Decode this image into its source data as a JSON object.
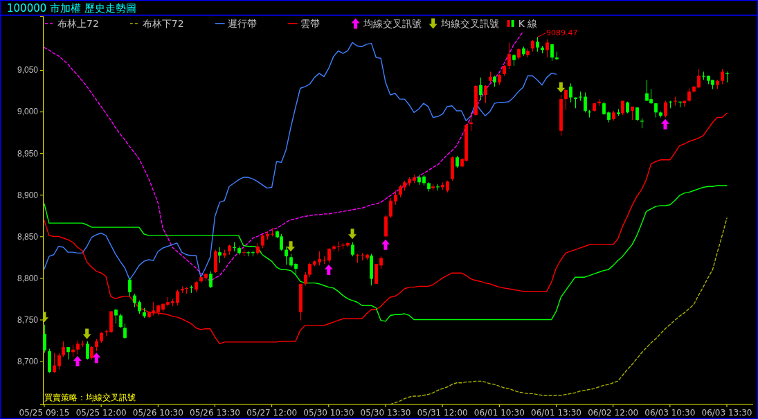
{
  "chart_data": {
    "type": "candlestick",
    "title": "100000 市加權  歷史走勢圖",
    "categories": [
      "05/25 09:15",
      null,
      null,
      null,
      null,
      null,
      null,
      null,
      null,
      null,
      null,
      null,
      "05/25 12:00",
      null,
      null,
      null,
      null,
      null,
      null,
      null,
      null,
      null,
      null,
      null,
      "05/26 10:30",
      null,
      null,
      null,
      null,
      null,
      null,
      null,
      null,
      null,
      null,
      null,
      "05/26 13:30",
      null,
      null,
      null,
      null,
      null,
      null,
      null,
      null,
      null,
      null,
      null,
      "05/27 12:00",
      null,
      null,
      null,
      null,
      null,
      null,
      null,
      null,
      null,
      null,
      null,
      "05/30 10:30",
      null,
      null,
      null,
      null,
      null,
      null,
      null,
      null,
      null,
      null,
      null,
      "05/30 13:30",
      null,
      null,
      null,
      null,
      null,
      null,
      null,
      null,
      null,
      null,
      null,
      "05/31 12:00",
      null,
      null,
      null,
      null,
      null,
      null,
      null,
      null,
      null,
      null,
      null,
      "06/01 10:30",
      null,
      null,
      null,
      null,
      null,
      null,
      null,
      null,
      null,
      null,
      null,
      "06/01 13:30",
      null,
      null,
      null,
      null,
      null,
      null,
      null,
      null,
      null,
      null,
      null,
      "06/02 12:00",
      null,
      null,
      null,
      null,
      null,
      null,
      null,
      null,
      null,
      null,
      null,
      "06/03 10:30",
      null,
      null,
      null,
      null,
      null,
      null,
      null,
      null,
      null,
      null,
      null,
      "06/03 13:30"
    ],
    "ylim": [
      8648,
      9115
    ],
    "yticks": [
      {
        "value": 8700,
        "label": "8,700"
      },
      {
        "value": 8750,
        "label": "8,750"
      },
      {
        "value": 8800,
        "label": "8,800"
      },
      {
        "value": 8850,
        "label": "8,850"
      },
      {
        "value": 8900,
        "label": "8,900"
      },
      {
        "value": 8950,
        "label": "8,950"
      },
      {
        "value": 9000,
        "label": "9,000"
      },
      {
        "value": 9050,
        "label": "9,050"
      }
    ],
    "legend": "top",
    "annotations": [
      "買賣策略：均線交叉訊號",
      "9089.47"
    ],
    "series": [
      {
        "name": "布林上72",
        "type": "line",
        "color": "#ff00ff",
        "line_style": "dashed",
        "values": [
          9077,
          9074,
          9070,
          9067,
          9062,
          9057,
          9050,
          9044,
          9037,
          9030,
          9022,
          9014,
          9006,
          8998,
          8990,
          8981,
          8973,
          8966,
          8958,
          8951,
          8943,
          8932,
          8920,
          8905,
          8890,
          8860,
          8849,
          8837,
          8832,
          8827,
          8822,
          8817,
          8812,
          8806,
          8801,
          8796,
          8800,
          8803,
          8810,
          8818,
          8825,
          8831,
          8837,
          8842,
          8848,
          8850,
          8853,
          8855,
          8858,
          8860,
          8863,
          8867,
          8870,
          8871,
          8873,
          8874,
          8875,
          8876,
          8876,
          8877,
          8877,
          8878,
          8879,
          8880,
          8881,
          8882,
          8883,
          8884,
          8886,
          8888,
          8889,
          8891,
          8895,
          8899,
          8903,
          8907,
          8911,
          8915,
          8919,
          8922,
          8926,
          8929,
          8933,
          8936,
          8942,
          8948,
          8953,
          8959,
          8970,
          8982,
          8993,
          9004,
          9015,
          9026,
          9033,
          9040,
          9047,
          9058,
          9069,
          9080,
          9088,
          9096,
          null,
          null,
          null,
          null,
          null,
          null,
          null,
          null,
          null,
          null,
          null,
          null,
          null,
          null,
          null,
          null,
          null,
          null,
          null,
          null,
          null,
          null,
          null,
          null,
          null,
          null,
          null,
          null,
          null,
          null,
          null,
          null,
          null,
          null,
          null,
          null,
          null,
          null,
          null,
          null,
          null,
          null,
          null
        ]
      },
      {
        "name": "布林下72",
        "type": "line",
        "color": "#a8b000",
        "line_style": "dashed",
        "values": [
          null,
          null,
          null,
          null,
          null,
          null,
          null,
          null,
          null,
          null,
          null,
          null,
          null,
          null,
          null,
          null,
          null,
          null,
          null,
          null,
          null,
          null,
          null,
          null,
          null,
          null,
          null,
          null,
          null,
          null,
          null,
          null,
          null,
          null,
          null,
          null,
          null,
          null,
          null,
          null,
          null,
          null,
          null,
          null,
          null,
          null,
          null,
          null,
          null,
          null,
          null,
          null,
          null,
          null,
          null,
          null,
          null,
          null,
          null,
          null,
          null,
          null,
          null,
          null,
          null,
          null,
          null,
          null,
          null,
          null,
          null,
          null,
          null,
          8648,
          8650,
          8652,
          8655,
          8657,
          8658,
          8658,
          8659,
          8660,
          8662,
          8665,
          8667,
          8669,
          8672,
          8674,
          8674,
          8675,
          8675,
          8676,
          8676,
          8675,
          8673,
          8672,
          8670,
          8668,
          8667,
          8665,
          8663,
          8662,
          8661,
          8661,
          8660,
          8659,
          8659,
          8659,
          8659,
          8659,
          8660,
          8661,
          8662,
          8664,
          8665,
          8666,
          8667,
          8669,
          8671,
          8672,
          8674,
          8676,
          8683,
          8690,
          8696,
          8703,
          8710,
          8716,
          8722,
          8727,
          8733,
          8739,
          8744,
          8749,
          8754,
          8758,
          8763,
          8768,
          8779,
          8789,
          8800,
          8810,
          8831,
          8851,
          8872
        ]
      },
      {
        "name": "遲行帶",
        "type": "line",
        "color": "#4080ff",
        "line_style": "solid",
        "values": [
          8811,
          8826,
          8828,
          8838,
          8837,
          8831,
          8831,
          8830,
          8830,
          8838,
          8849,
          8852,
          8854,
          8851,
          8840,
          8829,
          8820,
          8812,
          8798,
          8806,
          8815,
          8820,
          8822,
          8821,
          8832,
          8836,
          8838,
          8840,
          8842,
          8831,
          8828,
          8827,
          8827,
          8801,
          8812,
          8825,
          8874,
          8891,
          8893,
          8910,
          8914,
          8918,
          8921,
          8921,
          8919,
          8916,
          8912,
          8908,
          8909,
          8940,
          8939,
          8954,
          8981,
          9005,
          9028,
          9030,
          9033,
          9041,
          9046,
          9042,
          9052,
          9066,
          9073,
          9070,
          9073,
          9083,
          9079,
          9078,
          9081,
          9082,
          9065,
          9064,
          9035,
          9020,
          9022,
          9015,
          9015,
          9008,
          8999,
          9003,
          9010,
          9006,
          8993,
          8994,
          8997,
          9006,
          9007,
          9001,
          9001,
          8989,
          8995,
          9010,
          9002,
          8995,
          9000,
          9010,
          9011,
          9011,
          9012,
          9017,
          9024,
          9029,
          9043,
          9043,
          9038,
          9032,
          9041,
          9046,
          9045,
          null,
          null,
          null,
          null,
          null,
          null,
          null,
          null,
          null,
          null,
          null,
          null,
          null,
          null,
          null,
          null,
          null,
          null,
          null,
          null,
          null,
          null,
          null,
          null,
          null,
          null,
          null,
          null,
          null,
          null,
          null,
          null,
          null,
          null,
          null,
          null
        ]
      },
      {
        "name": "雲帶",
        "type": "line",
        "color": "#ff0000",
        "line_style": "solid",
        "values": [
          8869,
          8851,
          8850,
          8850,
          8848,
          8846,
          8843,
          8837,
          8833,
          8819,
          8813,
          8808,
          8806,
          8802,
          8778,
          8775,
          8777,
          8778,
          8778,
          8771,
          8764,
          8762,
          8759,
          8758,
          8758,
          8757,
          8756,
          8754,
          8753,
          8751,
          8748,
          8745,
          8740,
          8738,
          8739,
          8739,
          8729,
          8721,
          8723,
          8723,
          8723,
          8723,
          8723,
          8723,
          8723,
          8723,
          8723,
          8723,
          8723,
          8723,
          8724,
          8724,
          8724,
          8724,
          8737,
          8743,
          8743,
          8743,
          8743,
          8743,
          8745,
          8747,
          8749,
          8751,
          8751,
          8751,
          8751,
          8751,
          8757,
          8762,
          8762,
          8766,
          8772,
          8777,
          8778,
          8782,
          8787,
          8789,
          8789,
          8790,
          8790,
          8790,
          8792,
          8796,
          8800,
          8803,
          8806,
          8806,
          8806,
          8803,
          8799,
          8797,
          8796,
          8794,
          8793,
          8791,
          8789,
          8788,
          8787,
          8786,
          8785,
          8784,
          8784,
          8784,
          8784,
          8784,
          8784,
          8795,
          8812,
          8822,
          8830,
          8832,
          8834,
          8836,
          8838,
          8840,
          8840,
          8840,
          8840,
          8840,
          8840,
          8847,
          8862,
          8874,
          8887,
          8898,
          8906,
          8918,
          8937,
          8940,
          8942,
          8942,
          8942,
          8950,
          8959,
          8961,
          8964,
          8966,
          8968,
          8971,
          8979,
          8987,
          8993,
          8993,
          8998
        ]
      },
      {
        "type": "line",
        "color": "#00ff00",
        "line_style": "solid",
        "values": [
          8889,
          8866,
          8866,
          8866,
          8866,
          8866,
          8866,
          8866,
          8866,
          8864,
          8861,
          8861,
          8861,
          8861,
          8861,
          8861,
          8861,
          8861,
          8861,
          8861,
          8861,
          8853,
          8851,
          8851,
          8851,
          8851,
          8851,
          8851,
          8851,
          8851,
          8851,
          8851,
          8851,
          8851,
          8851,
          8851,
          8851,
          8851,
          8851,
          8851,
          8851,
          8851,
          8839,
          8838,
          8838,
          8837,
          8828,
          8824,
          8820,
          8813,
          8810,
          8810,
          8809,
          8804,
          8796,
          8794,
          8794,
          8794,
          8793,
          8791,
          8789,
          8788,
          8784,
          8779,
          8775,
          8773,
          8771,
          8767,
          8767,
          8767,
          8764,
          8749,
          8748,
          8755,
          8756,
          8756,
          8757,
          8755,
          8750,
          8750,
          8750,
          8750,
          8750,
          8750,
          8750,
          8750,
          8750,
          8750,
          8750,
          8750,
          8750,
          8750,
          8750,
          8750,
          8750,
          8750,
          8750,
          8750,
          8750,
          8750,
          8750,
          8750,
          8750,
          8750,
          8750,
          8750,
          8750,
          8750,
          8760,
          8777,
          8785,
          8793,
          8801,
          8801,
          8801,
          8803,
          8805,
          8807,
          8809,
          8810,
          8815,
          8821,
          8826,
          8833,
          8840,
          8851,
          8865,
          8880,
          8883,
          8886,
          8887,
          8887,
          8888,
          8893,
          8899,
          8902,
          8903,
          8905,
          8907,
          8909,
          8910,
          8910,
          8911,
          8911,
          8911
        ]
      },
      {
        "name": "均線交叉訊號",
        "type": "scatter",
        "color": "#ff00ff",
        "values": [
          null,
          null,
          null,
          null,
          null,
          null,
          null,
          8700,
          null,
          null,
          null,
          8704,
          null,
          null,
          null,
          null,
          null,
          null,
          null,
          null,
          null,
          null,
          null,
          null,
          null,
          null,
          null,
          null,
          null,
          null,
          null,
          null,
          null,
          null,
          null,
          null,
          null,
          null,
          null,
          null,
          null,
          null,
          null,
          null,
          null,
          null,
          null,
          null,
          null,
          null,
          null,
          null,
          null,
          null,
          null,
          null,
          null,
          null,
          null,
          null,
          8810,
          null,
          null,
          null,
          null,
          null,
          null,
          null,
          null,
          null,
          null,
          null,
          8840,
          null,
          null,
          null,
          null,
          null,
          null,
          null,
          null,
          null,
          null,
          null,
          null,
          null,
          null,
          null,
          null,
          null,
          null,
          null,
          null,
          null,
          null,
          null,
          null,
          null,
          null,
          null,
          null,
          null,
          null,
          null,
          null,
          null,
          null,
          null,
          null,
          null,
          null,
          null,
          null,
          null,
          null,
          null,
          null,
          null,
          null,
          null,
          null,
          null,
          null,
          null,
          null,
          null,
          null,
          null,
          null,
          null,
          null,
          8985,
          null,
          null,
          null,
          null,
          null,
          null,
          null,
          null,
          null,
          null,
          null,
          null,
          null
        ]
      },
      {
        "name": "均線交叉訊號",
        "type": "scatter",
        "color": "#a8c000",
        "values": [
          8753,
          null,
          null,
          null,
          null,
          null,
          null,
          null,
          null,
          8733,
          null,
          null,
          null,
          null,
          null,
          null,
          null,
          null,
          null,
          null,
          null,
          null,
          null,
          null,
          null,
          null,
          null,
          null,
          null,
          null,
          null,
          null,
          null,
          null,
          null,
          null,
          null,
          null,
          null,
          null,
          null,
          null,
          null,
          null,
          null,
          null,
          null,
          null,
          null,
          null,
          null,
          null,
          8838,
          null,
          null,
          null,
          null,
          null,
          null,
          null,
          null,
          null,
          null,
          null,
          null,
          8853,
          null,
          null,
          null,
          null,
          null,
          null,
          null,
          null,
          null,
          null,
          null,
          null,
          null,
          null,
          null,
          null,
          null,
          null,
          null,
          null,
          null,
          null,
          null,
          null,
          null,
          null,
          null,
          null,
          null,
          null,
          null,
          null,
          null,
          null,
          null,
          null,
          null,
          null,
          null,
          null,
          null,
          null,
          null,
          9029,
          null,
          null,
          null,
          null,
          null,
          null,
          null,
          null,
          null,
          null,
          null,
          null,
          null,
          null,
          null,
          null,
          null,
          null,
          null,
          null,
          null,
          null,
          null,
          null,
          null,
          null,
          null,
          null,
          null,
          null,
          null,
          null,
          null,
          null,
          null
        ]
      },
      {
        "name": "K 線",
        "ohlc": [
          [
            8733,
            8744,
            8710,
            8713
          ],
          [
            8712,
            8715,
            8686,
            8687
          ],
          [
            8687,
            8710,
            8686,
            8695
          ],
          [
            8694,
            8710,
            8690,
            8707
          ],
          [
            8707,
            8724,
            8705,
            8717
          ],
          [
            8717,
            8717,
            8702,
            8711
          ],
          [
            8711,
            8720,
            8705,
            8714
          ],
          [
            8714,
            8725,
            8708,
            8721
          ],
          [
            8720,
            8725,
            8717,
            8721
          ],
          [
            8721,
            8724,
            8702,
            8703
          ],
          [
            8704,
            8718,
            8702,
            8717
          ],
          [
            8717,
            8727,
            8712,
            8724
          ],
          [
            8724,
            8735,
            8722,
            8734
          ],
          [
            8735,
            8738,
            8730,
            8736
          ],
          [
            8735,
            8760,
            8734,
            8760
          ],
          [
            8762,
            8763,
            8745,
            8755
          ],
          [
            8755,
            8757,
            8740,
            8741
          ],
          [
            8740,
            8745,
            8727,
            8728
          ],
          [
            8798,
            8800,
            8778,
            8783
          ],
          [
            8779,
            8781,
            8765,
            8770
          ],
          [
            8771,
            8773,
            8757,
            8760
          ],
          [
            8759,
            8764,
            8752,
            8754
          ],
          [
            8753,
            8760,
            8752,
            8759
          ],
          [
            8758,
            8771,
            8755,
            8761
          ],
          [
            8759,
            8768,
            8755,
            8767
          ],
          [
            8762,
            8769,
            8759,
            8769
          ],
          [
            8768,
            8777,
            8766,
            8771
          ],
          [
            8770,
            8775,
            8766,
            8772
          ],
          [
            8770,
            8786,
            8767,
            8784
          ],
          [
            8785,
            8790,
            8782,
            8787
          ],
          [
            8787,
            8789,
            8781,
            8788
          ],
          [
            8789,
            8791,
            8782,
            8788
          ],
          [
            8786,
            8796,
            8783,
            8795
          ],
          [
            8796,
            8802,
            8794,
            8801
          ],
          [
            8800,
            8805,
            8796,
            8805
          ],
          [
            8805,
            8808,
            8788,
            8789
          ],
          [
            8807,
            8834,
            8806,
            8832
          ],
          [
            8831,
            8837,
            8818,
            8827
          ],
          [
            8827,
            8834,
            8824,
            8830
          ],
          [
            8832,
            8840,
            8828,
            8839
          ],
          [
            8837,
            8843,
            8832,
            8836
          ],
          [
            8836,
            8838,
            8828,
            8830
          ],
          [
            8831,
            8835,
            8826,
            8831
          ],
          [
            8831,
            8832,
            8826,
            8830
          ],
          [
            8831,
            8833,
            8826,
            8830
          ],
          [
            8830,
            8842,
            8828,
            8838
          ],
          [
            8839,
            8853,
            8836,
            8851
          ],
          [
            8850,
            8856,
            8846,
            8853
          ],
          [
            8853,
            8860,
            8850,
            8853
          ],
          [
            8856,
            8857,
            8848,
            8849
          ],
          [
            8850,
            8853,
            8833,
            8834
          ],
          [
            8834,
            8838,
            8816,
            8826
          ],
          [
            8825,
            8829,
            8813,
            8815
          ],
          [
            8817,
            8818,
            8803,
            8811
          ],
          [
            8759,
            8793,
            8749,
            8793
          ],
          [
            8793,
            8807,
            8791,
            8804
          ],
          [
            8804,
            8818,
            8801,
            8817
          ],
          [
            8816,
            8821,
            8814,
            8820
          ],
          [
            8819,
            8832,
            8815,
            8823
          ],
          [
            8822,
            8826,
            8817,
            8822
          ],
          [
            8821,
            8836,
            8818,
            8835
          ],
          [
            8835,
            8840,
            8832,
            8838
          ],
          [
            8837,
            8844,
            8832,
            8838
          ],
          [
            8839,
            8842,
            8835,
            8840
          ],
          [
            8839,
            8843,
            8837,
            8842
          ],
          [
            8840,
            8843,
            8826,
            8828
          ],
          [
            8827,
            8829,
            8818,
            8828
          ],
          [
            8828,
            8830,
            8821,
            8828
          ],
          [
            8824,
            8829,
            8822,
            8828
          ],
          [
            8827,
            8829,
            8791,
            8799
          ],
          [
            8793,
            8817,
            8793,
            8817
          ],
          [
            8815,
            8826,
            8811,
            8824
          ],
          [
            8850,
            8876,
            8849,
            8874
          ],
          [
            8874,
            8896,
            8872,
            8893
          ],
          [
            8892,
            8905,
            8888,
            8900
          ],
          [
            8900,
            8912,
            8897,
            8910
          ],
          [
            8909,
            8917,
            8905,
            8915
          ],
          [
            8914,
            8921,
            8911,
            8919
          ],
          [
            8917,
            8924,
            8914,
            8921
          ],
          [
            8921,
            8924,
            8912,
            8915
          ],
          [
            8922,
            8924,
            8911,
            8914
          ],
          [
            8914,
            8915,
            8904,
            8907
          ],
          [
            8908,
            8913,
            8905,
            8910
          ],
          [
            8910,
            8913,
            8905,
            8909
          ],
          [
            8909,
            8915,
            8906,
            8912
          ],
          [
            8905,
            8917,
            8903,
            8916
          ],
          [
            8919,
            8946,
            8917,
            8945
          ],
          [
            8945,
            8947,
            8932,
            8934
          ],
          [
            8934,
            8944,
            8933,
            8943
          ],
          [
            8941,
            8985,
            8940,
            8984
          ],
          [
            8985,
            8999,
            8977,
            8987
          ],
          [
            8996,
            9032,
            8995,
            9031
          ],
          [
            9032,
            9041,
            9014,
            9020
          ],
          [
            9020,
            9032,
            9010,
            9031
          ],
          [
            9037,
            9048,
            9035,
            9042
          ],
          [
            9042,
            9043,
            9030,
            9035
          ],
          [
            9035,
            9045,
            9032,
            9044
          ],
          [
            9045,
            9056,
            9043,
            9055
          ],
          [
            9055,
            9083,
            9051,
            9069
          ],
          [
            9068,
            9069,
            9055,
            9062
          ],
          [
            9065,
            9076,
            9063,
            9075
          ],
          [
            9076,
            9078,
            9067,
            9069
          ],
          [
            9068,
            9076,
            9065,
            9073
          ],
          [
            9076,
            9086,
            9072,
            9085
          ],
          [
            9084,
            9089.47,
            9072,
            9077
          ],
          [
            9077,
            9079,
            9070,
            9074
          ],
          [
            9074,
            9087,
            9065,
            9083
          ],
          [
            9081,
            9081,
            9061,
            9065
          ],
          [
            9065,
            9072,
            9062,
            9063
          ],
          [
            8977,
            9020,
            8971,
            9015
          ],
          [
            9015,
            9027,
            9002,
            9026
          ],
          [
            9030,
            9034,
            9011,
            9017
          ],
          [
            9017,
            9017,
            9004,
            9015
          ],
          [
            9018,
            9024,
            9013,
            9017
          ],
          [
            9018,
            9023,
            8999,
            9001
          ],
          [
            9000,
            9002,
            8993,
            8999
          ],
          [
            9001,
            9010,
            9000,
            9010
          ],
          [
            9010,
            9015,
            9007,
            9012
          ],
          [
            9010,
            9012,
            8996,
            8997
          ],
          [
            8999,
            9000,
            8987,
            8990
          ],
          [
            8991,
            9001,
            8989,
            8999
          ],
          [
            8999,
            9003,
            8995,
            8997
          ],
          [
            8998,
            9013,
            8996,
            9013
          ],
          [
            9011,
            9012,
            8998,
            8999
          ],
          [
            9001,
            9006,
            8990,
            9006
          ],
          [
            9005,
            9005,
            8989,
            8990
          ],
          [
            8989,
            8992,
            8980,
            8988
          ],
          [
            9022,
            9038,
            9013,
            9013
          ],
          [
            9015,
            9027,
            9009,
            9010
          ],
          [
            9010,
            9010,
            8993,
            8999
          ],
          [
            8999,
            9000,
            8993,
            8995
          ],
          [
            8995,
            9013,
            8993,
            9011
          ],
          [
            9012,
            9013,
            9004,
            9011
          ],
          [
            9012,
            9018,
            9007,
            9013
          ],
          [
            9012,
            9012,
            9005,
            9011
          ],
          [
            9010,
            9013,
            9006,
            9013
          ],
          [
            9013,
            9028,
            9012,
            9024
          ],
          [
            9024,
            9031,
            9023,
            9030
          ],
          [
            9029,
            9051,
            9028,
            9043
          ],
          [
            9043,
            9048,
            9038,
            9042
          ],
          [
            9043,
            9043,
            9033,
            9037
          ],
          [
            9038,
            9038,
            9027,
            9032
          ],
          [
            9032,
            9038,
            9027,
            9037
          ],
          [
            9037,
            9051,
            9033,
            9048
          ],
          [
            9046,
            9048,
            9035,
            9045
          ]
        ]
      }
    ]
  }
}
